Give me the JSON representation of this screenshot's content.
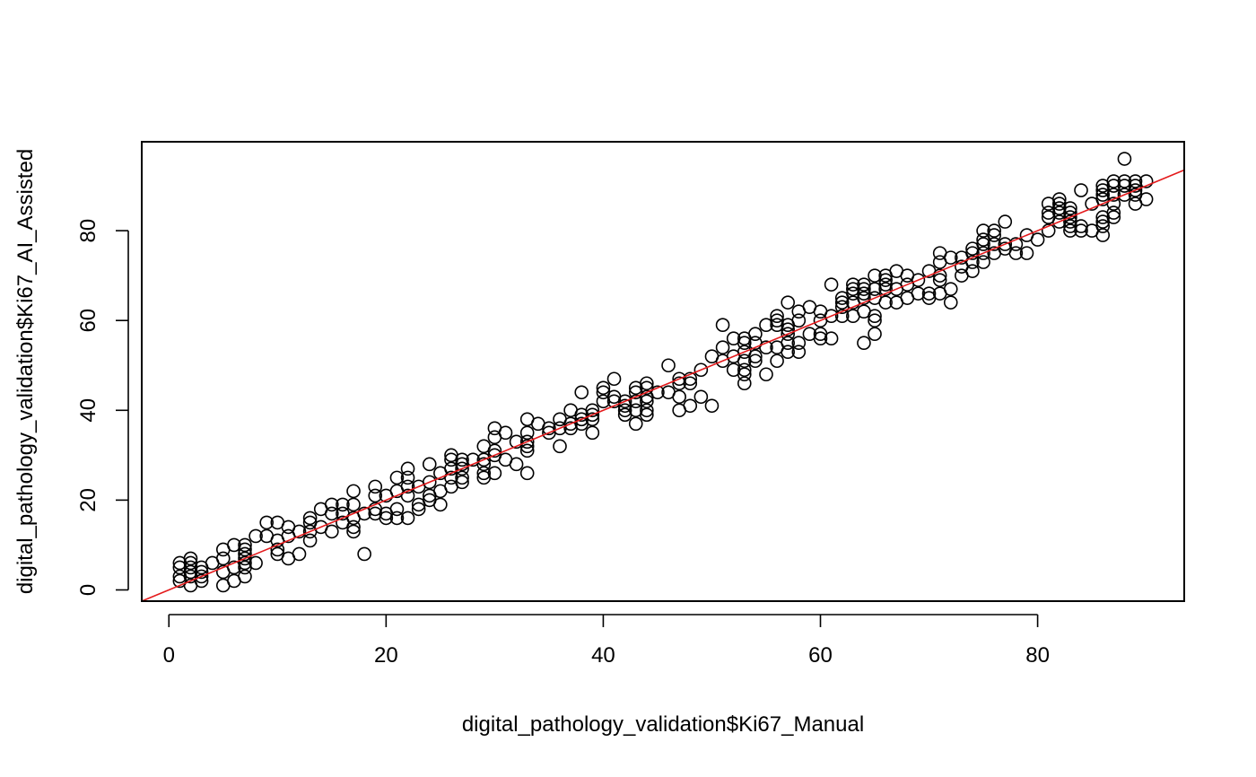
{
  "chart_data": {
    "type": "scatter",
    "title": "",
    "xlabel": "digital_pathology_validation$Ki67_Manual",
    "ylabel": "digital_pathology_validation$Ki67_AI_Assisted",
    "xlim": [
      -2.5,
      93.5
    ],
    "ylim": [
      -2.5,
      99.8
    ],
    "x_ticks": [
      0,
      20,
      40,
      60,
      80
    ],
    "y_ticks": [
      0,
      20,
      40,
      60,
      80
    ],
    "x_tick_labels": [
      "0",
      "20",
      "40",
      "60",
      "80"
    ],
    "y_tick_labels": [
      "0",
      "20",
      "40",
      "60",
      "80"
    ],
    "grid": false,
    "marker": "open circle",
    "point_color": "#000000",
    "reference_line": {
      "type": "identity",
      "intercept": 0,
      "slope": 1,
      "color": "#e41a1c"
    },
    "points": [
      [
        1,
        2
      ],
      [
        1,
        3
      ],
      [
        1,
        5
      ],
      [
        1,
        6
      ],
      [
        2,
        1
      ],
      [
        2,
        3
      ],
      [
        2,
        4
      ],
      [
        2,
        5
      ],
      [
        2,
        6
      ],
      [
        2,
        7
      ],
      [
        3,
        2
      ],
      [
        3,
        3
      ],
      [
        3,
        4
      ],
      [
        3,
        5
      ],
      [
        4,
        6
      ],
      [
        5,
        1
      ],
      [
        5,
        4
      ],
      [
        5,
        7
      ],
      [
        5,
        9
      ],
      [
        6,
        2
      ],
      [
        6,
        5
      ],
      [
        6,
        10
      ],
      [
        7,
        3
      ],
      [
        7,
        5
      ],
      [
        7,
        6
      ],
      [
        7,
        7
      ],
      [
        7,
        8
      ],
      [
        7,
        9
      ],
      [
        7,
        10
      ],
      [
        8,
        6
      ],
      [
        8,
        12
      ],
      [
        9,
        12
      ],
      [
        9,
        15
      ],
      [
        10,
        8
      ],
      [
        10,
        9
      ],
      [
        10,
        11
      ],
      [
        10,
        15
      ],
      [
        11,
        7
      ],
      [
        11,
        12
      ],
      [
        11,
        14
      ],
      [
        12,
        8
      ],
      [
        12,
        13
      ],
      [
        13,
        11
      ],
      [
        13,
        13
      ],
      [
        13,
        15
      ],
      [
        13,
        16
      ],
      [
        14,
        14
      ],
      [
        14,
        18
      ],
      [
        15,
        13
      ],
      [
        15,
        17
      ],
      [
        15,
        19
      ],
      [
        16,
        15
      ],
      [
        16,
        17
      ],
      [
        16,
        19
      ],
      [
        17,
        13
      ],
      [
        17,
        14
      ],
      [
        17,
        16
      ],
      [
        17,
        19
      ],
      [
        17,
        22
      ],
      [
        18,
        8
      ],
      [
        18,
        17
      ],
      [
        19,
        17
      ],
      [
        19,
        18
      ],
      [
        19,
        21
      ],
      [
        19,
        23
      ],
      [
        20,
        16
      ],
      [
        20,
        17
      ],
      [
        20,
        21
      ],
      [
        21,
        16
      ],
      [
        21,
        18
      ],
      [
        21,
        22
      ],
      [
        21,
        25
      ],
      [
        22,
        16
      ],
      [
        22,
        21
      ],
      [
        22,
        23
      ],
      [
        22,
        25
      ],
      [
        22,
        27
      ],
      [
        23,
        18
      ],
      [
        23,
        19
      ],
      [
        23,
        23
      ],
      [
        24,
        20
      ],
      [
        24,
        21
      ],
      [
        24,
        24
      ],
      [
        24,
        28
      ],
      [
        25,
        19
      ],
      [
        25,
        22
      ],
      [
        25,
        26
      ],
      [
        26,
        23
      ],
      [
        26,
        25
      ],
      [
        26,
        27
      ],
      [
        26,
        29
      ],
      [
        26,
        30
      ],
      [
        27,
        24
      ],
      [
        27,
        25
      ],
      [
        27,
        27
      ],
      [
        27,
        28
      ],
      [
        27,
        29
      ],
      [
        28,
        29
      ],
      [
        29,
        25
      ],
      [
        29,
        26
      ],
      [
        29,
        28
      ],
      [
        29,
        29
      ],
      [
        29,
        32
      ],
      [
        30,
        26
      ],
      [
        30,
        30
      ],
      [
        30,
        31
      ],
      [
        30,
        34
      ],
      [
        30,
        36
      ],
      [
        31,
        29
      ],
      [
        31,
        35
      ],
      [
        32,
        28
      ],
      [
        32,
        33
      ],
      [
        33,
        26
      ],
      [
        33,
        31
      ],
      [
        33,
        32
      ],
      [
        33,
        33
      ],
      [
        33,
        35
      ],
      [
        33,
        38
      ],
      [
        34,
        37
      ],
      [
        35,
        35
      ],
      [
        35,
        36
      ],
      [
        36,
        32
      ],
      [
        36,
        36
      ],
      [
        36,
        38
      ],
      [
        37,
        36
      ],
      [
        37,
        37
      ],
      [
        37,
        40
      ],
      [
        38,
        37
      ],
      [
        38,
        38
      ],
      [
        38,
        39
      ],
      [
        38,
        44
      ],
      [
        39,
        35
      ],
      [
        39,
        38
      ],
      [
        39,
        39
      ],
      [
        39,
        40
      ],
      [
        40,
        42
      ],
      [
        40,
        44
      ],
      [
        40,
        45
      ],
      [
        41,
        42
      ],
      [
        41,
        43
      ],
      [
        41,
        47
      ],
      [
        42,
        39
      ],
      [
        42,
        40
      ],
      [
        42,
        41
      ],
      [
        42,
        42
      ],
      [
        43,
        37
      ],
      [
        43,
        40
      ],
      [
        43,
        42
      ],
      [
        43,
        44
      ],
      [
        43,
        45
      ],
      [
        44,
        39
      ],
      [
        44,
        40
      ],
      [
        44,
        42
      ],
      [
        44,
        43
      ],
      [
        44,
        45
      ],
      [
        44,
        46
      ],
      [
        45,
        44
      ],
      [
        46,
        44
      ],
      [
        46,
        50
      ],
      [
        47,
        40
      ],
      [
        47,
        43
      ],
      [
        47,
        46
      ],
      [
        47,
        47
      ],
      [
        48,
        41
      ],
      [
        48,
        46
      ],
      [
        48,
        47
      ],
      [
        49,
        43
      ],
      [
        49,
        49
      ],
      [
        50,
        41
      ],
      [
        50,
        52
      ],
      [
        51,
        51
      ],
      [
        51,
        54
      ],
      [
        51,
        59
      ],
      [
        52,
        49
      ],
      [
        52,
        52
      ],
      [
        52,
        56
      ],
      [
        53,
        46
      ],
      [
        53,
        48
      ],
      [
        53,
        49
      ],
      [
        53,
        51
      ],
      [
        53,
        53
      ],
      [
        53,
        55
      ],
      [
        53,
        56
      ],
      [
        54,
        51
      ],
      [
        54,
        52
      ],
      [
        54,
        55
      ],
      [
        54,
        57
      ],
      [
        55,
        48
      ],
      [
        55,
        54
      ],
      [
        55,
        59
      ],
      [
        56,
        51
      ],
      [
        56,
        54
      ],
      [
        56,
        59
      ],
      [
        56,
        60
      ],
      [
        56,
        61
      ],
      [
        57,
        53
      ],
      [
        57,
        55
      ],
      [
        57,
        57
      ],
      [
        57,
        58
      ],
      [
        57,
        59
      ],
      [
        57,
        64
      ],
      [
        58,
        53
      ],
      [
        58,
        55
      ],
      [
        58,
        60
      ],
      [
        58,
        62
      ],
      [
        59,
        57
      ],
      [
        59,
        63
      ],
      [
        60,
        56
      ],
      [
        60,
        57
      ],
      [
        60,
        60
      ],
      [
        60,
        62
      ],
      [
        61,
        56
      ],
      [
        61,
        61
      ],
      [
        61,
        68
      ],
      [
        62,
        61
      ],
      [
        62,
        63
      ],
      [
        62,
        64
      ],
      [
        62,
        65
      ],
      [
        63,
        61
      ],
      [
        63,
        64
      ],
      [
        63,
        66
      ],
      [
        63,
        67
      ],
      [
        63,
        68
      ],
      [
        64,
        55
      ],
      [
        64,
        62
      ],
      [
        64,
        65
      ],
      [
        64,
        66
      ],
      [
        64,
        67
      ],
      [
        64,
        68
      ],
      [
        65,
        57
      ],
      [
        65,
        60
      ],
      [
        65,
        61
      ],
      [
        65,
        65
      ],
      [
        65,
        67
      ],
      [
        65,
        70
      ],
      [
        66,
        64
      ],
      [
        66,
        67
      ],
      [
        66,
        68
      ],
      [
        66,
        69
      ],
      [
        66,
        70
      ],
      [
        67,
        64
      ],
      [
        67,
        67
      ],
      [
        67,
        71
      ],
      [
        68,
        65
      ],
      [
        68,
        68
      ],
      [
        68,
        70
      ],
      [
        69,
        66
      ],
      [
        69,
        69
      ],
      [
        70,
        65
      ],
      [
        70,
        66
      ],
      [
        70,
        71
      ],
      [
        71,
        66
      ],
      [
        71,
        69
      ],
      [
        71,
        70
      ],
      [
        71,
        73
      ],
      [
        71,
        75
      ],
      [
        72,
        64
      ],
      [
        72,
        67
      ],
      [
        72,
        74
      ],
      [
        73,
        70
      ],
      [
        73,
        72
      ],
      [
        73,
        74
      ],
      [
        74,
        71
      ],
      [
        74,
        73
      ],
      [
        74,
        75
      ],
      [
        74,
        76
      ],
      [
        75,
        73
      ],
      [
        75,
        75
      ],
      [
        75,
        77
      ],
      [
        75,
        78
      ],
      [
        75,
        80
      ],
      [
        76,
        75
      ],
      [
        76,
        77
      ],
      [
        76,
        79
      ],
      [
        76,
        80
      ],
      [
        77,
        76
      ],
      [
        77,
        77
      ],
      [
        77,
        82
      ],
      [
        78,
        75
      ],
      [
        78,
        77
      ],
      [
        79,
        75
      ],
      [
        79,
        79
      ],
      [
        80,
        78
      ],
      [
        81,
        80
      ],
      [
        81,
        83
      ],
      [
        81,
        84
      ],
      [
        81,
        86
      ],
      [
        82,
        82
      ],
      [
        82,
        84
      ],
      [
        82,
        85
      ],
      [
        82,
        86
      ],
      [
        82,
        87
      ],
      [
        83,
        80
      ],
      [
        83,
        81
      ],
      [
        83,
        82
      ],
      [
        83,
        83
      ],
      [
        83,
        84
      ],
      [
        83,
        85
      ],
      [
        84,
        80
      ],
      [
        84,
        81
      ],
      [
        84,
        89
      ],
      [
        85,
        80
      ],
      [
        85,
        86
      ],
      [
        86,
        79
      ],
      [
        86,
        81
      ],
      [
        86,
        82
      ],
      [
        86,
        83
      ],
      [
        86,
        87
      ],
      [
        86,
        88
      ],
      [
        86,
        89
      ],
      [
        86,
        90
      ],
      [
        87,
        83
      ],
      [
        87,
        84
      ],
      [
        87,
        86
      ],
      [
        87,
        88
      ],
      [
        87,
        90
      ],
      [
        87,
        91
      ],
      [
        88,
        88
      ],
      [
        88,
        90
      ],
      [
        88,
        91
      ],
      [
        88,
        96
      ],
      [
        89,
        86
      ],
      [
        89,
        88
      ],
      [
        89,
        89
      ],
      [
        89,
        90
      ],
      [
        89,
        91
      ],
      [
        90,
        87
      ],
      [
        90,
        91
      ]
    ]
  }
}
